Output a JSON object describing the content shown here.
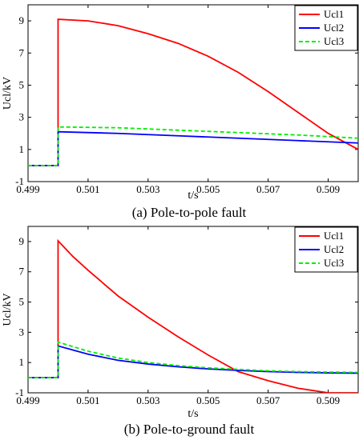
{
  "chart_data": [
    {
      "type": "line",
      "title": "",
      "caption": "(a)  Pole-to-pole fault",
      "xlabel": "t/s",
      "ylabel": "Ucl/kV",
      "xlim": [
        0.499,
        0.51
      ],
      "ylim": [
        -1,
        10
      ],
      "xticks": [
        0.499,
        0.501,
        0.503,
        0.505,
        0.507,
        0.509
      ],
      "xtick_labels": [
        "0.499",
        "0.501",
        "0.503",
        "0.505",
        "0.507",
        "0.509"
      ],
      "yticks": [
        -1,
        1,
        3,
        5,
        7,
        9
      ],
      "ytick_labels": [
        "-1",
        "1",
        "3",
        "5",
        "7",
        "9"
      ],
      "legend_position": "top-right",
      "grid": false,
      "series": [
        {
          "name": "Ucl1",
          "color": "#ff0000",
          "style": "solid",
          "x": [
            0.499,
            0.5,
            0.5,
            0.501,
            0.502,
            0.503,
            0.504,
            0.505,
            0.506,
            0.507,
            0.508,
            0.509,
            0.51
          ],
          "y": [
            0,
            0,
            9.1,
            9.0,
            8.7,
            8.2,
            7.6,
            6.8,
            5.8,
            4.6,
            3.3,
            2.0,
            1.0
          ]
        },
        {
          "name": "Ucl2",
          "color": "#0000ff",
          "style": "solid",
          "x": [
            0.499,
            0.5,
            0.5,
            0.502,
            0.504,
            0.506,
            0.508,
            0.51
          ],
          "y": [
            0,
            0,
            2.1,
            2.0,
            1.85,
            1.7,
            1.55,
            1.4
          ]
        },
        {
          "name": "Ucl3",
          "color": "#00ee00",
          "style": "dashed",
          "x": [
            0.499,
            0.5,
            0.5,
            0.502,
            0.504,
            0.506,
            0.508,
            0.51
          ],
          "y": [
            0,
            0,
            2.4,
            2.35,
            2.2,
            2.05,
            1.9,
            1.7
          ]
        }
      ]
    },
    {
      "type": "line",
      "title": "",
      "caption": "(b)  Pole-to-ground fault",
      "xlabel": "t/s",
      "ylabel": "Ucl/kV",
      "xlim": [
        0.499,
        0.51
      ],
      "ylim": [
        -1,
        10
      ],
      "xticks": [
        0.499,
        0.501,
        0.503,
        0.505,
        0.507,
        0.509
      ],
      "xtick_labels": [
        "0.499",
        "0.501",
        "0.503",
        "0.505",
        "0.507",
        "0.509"
      ],
      "yticks": [
        -1,
        1,
        3,
        5,
        7,
        9
      ],
      "ytick_labels": [
        "-1",
        "1",
        "3",
        "5",
        "7",
        "9"
      ],
      "legend_position": "top-right",
      "grid": false,
      "series": [
        {
          "name": "Ucl1",
          "color": "#ff0000",
          "style": "solid",
          "x": [
            0.499,
            0.5,
            0.5,
            0.5005,
            0.501,
            0.502,
            0.503,
            0.504,
            0.505,
            0.506,
            0.507,
            0.508,
            0.509,
            0.51
          ],
          "y": [
            0,
            0,
            9.05,
            8.0,
            7.1,
            5.4,
            4.0,
            2.7,
            1.5,
            0.4,
            -0.2,
            -0.7,
            -1.0,
            -1.0
          ]
        },
        {
          "name": "Ucl2",
          "color": "#0000ff",
          "style": "solid",
          "x": [
            0.499,
            0.5,
            0.5,
            0.501,
            0.502,
            0.503,
            0.504,
            0.505,
            0.506,
            0.507,
            0.508,
            0.509,
            0.51
          ],
          "y": [
            0,
            0,
            2.1,
            1.55,
            1.15,
            0.9,
            0.72,
            0.58,
            0.48,
            0.4,
            0.35,
            0.32,
            0.3
          ]
        },
        {
          "name": "Ucl3",
          "color": "#00ee00",
          "style": "dashed",
          "x": [
            0.499,
            0.5,
            0.5,
            0.501,
            0.502,
            0.503,
            0.504,
            0.505,
            0.506,
            0.507,
            0.508,
            0.509,
            0.51
          ],
          "y": [
            0,
            0,
            2.35,
            1.75,
            1.3,
            1.0,
            0.8,
            0.65,
            0.55,
            0.45,
            0.4,
            0.37,
            0.35
          ]
        }
      ]
    }
  ]
}
